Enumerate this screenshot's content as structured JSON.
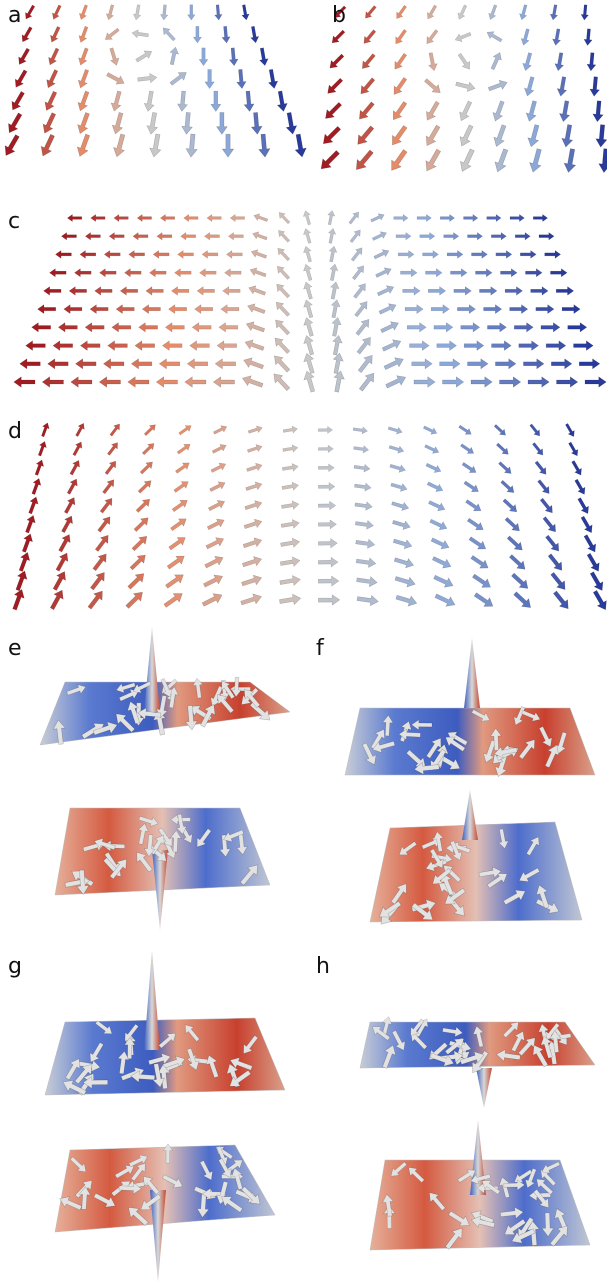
{
  "panels": [
    {
      "label": "a"
    },
    {
      "label": "b"
    },
    {
      "label": "c"
    },
    {
      "label": "d"
    },
    {
      "label": "e"
    },
    {
      "label": "f"
    },
    {
      "label": "g"
    },
    {
      "label": "h"
    }
  ]
}
